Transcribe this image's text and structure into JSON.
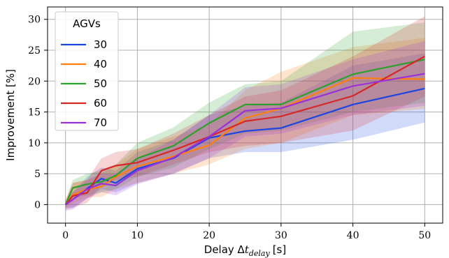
{
  "chart_data": {
    "type": "line",
    "xlabel_prefix": "Delay Δ",
    "xlabel_var": "t",
    "xlabel_sub": "delay",
    "xlabel_unit": "[s]",
    "ylabel": "Improvement [%]",
    "xlim": [
      -2.5,
      52.5
    ],
    "ylim": [
      -3,
      32
    ],
    "xticks": [
      0,
      10,
      20,
      30,
      40,
      50
    ],
    "yticks": [
      0,
      5,
      10,
      15,
      20,
      25,
      30
    ],
    "grid": true,
    "legend": {
      "title": "AGVs",
      "placement": "top-left"
    },
    "x": [
      0,
      1,
      3,
      5,
      7,
      10,
      15,
      20,
      25,
      30,
      40,
      50
    ],
    "series": [
      {
        "name": "30",
        "color": "#1f45e0",
        "values": [
          0,
          0.8,
          2.6,
          4.2,
          3.5,
          5.8,
          7.5,
          10.8,
          11.9,
          12.4,
          16.2,
          18.8
        ],
        "lower": [
          -0.5,
          -0.5,
          1.0,
          2.5,
          2.0,
          3.5,
          5.0,
          7.5,
          8.5,
          8.5,
          10.5,
          13.3
        ],
        "upper": [
          0.5,
          2.0,
          4.5,
          6.0,
          5.5,
          8.5,
          10.5,
          14.5,
          16.0,
          16.5,
          22.5,
          24.5
        ]
      },
      {
        "name": "40",
        "color": "#ff7f0e",
        "values": [
          0,
          1.6,
          2.5,
          2.9,
          4.5,
          6.2,
          7.8,
          9.6,
          14.0,
          15.6,
          20.5,
          20.3
        ],
        "lower": [
          -0.5,
          0.2,
          1.2,
          1.2,
          2.5,
          3.5,
          5.0,
          6.5,
          9.0,
          10.0,
          14.5,
          15.5
        ],
        "upper": [
          0.5,
          3.5,
          4.0,
          5.0,
          6.5,
          9.0,
          11.0,
          13.0,
          18.5,
          21.5,
          25.5,
          27.0
        ]
      },
      {
        "name": "50",
        "color": "#2ca02c",
        "values": [
          0,
          2.7,
          3.3,
          3.7,
          4.7,
          7.5,
          9.5,
          13.2,
          16.2,
          16.2,
          21.1,
          23.5
        ],
        "lower": [
          -0.5,
          1.0,
          1.5,
          2.0,
          2.5,
          4.5,
          6.0,
          9.0,
          11.5,
          12.0,
          15.0,
          16.5
        ],
        "upper": [
          0.5,
          4.0,
          5.0,
          5.5,
          6.5,
          10.0,
          12.5,
          16.5,
          19.5,
          20.0,
          28.0,
          29.5
        ]
      },
      {
        "name": "60",
        "color": "#d62728",
        "values": [
          0,
          1.4,
          1.9,
          5.5,
          6.3,
          6.8,
          8.8,
          11.0,
          13.5,
          14.3,
          17.6,
          24.0
        ],
        "lower": [
          -0.8,
          -0.5,
          0.3,
          3.0,
          4.0,
          4.5,
          6.5,
          8.5,
          9.5,
          10.0,
          12.0,
          17.5
        ],
        "upper": [
          0.8,
          3.5,
          4.0,
          7.5,
          8.5,
          9.0,
          11.5,
          14.5,
          17.5,
          18.5,
          24.0,
          30.5
        ]
      },
      {
        "name": "70",
        "color": "#9a30d8",
        "values": [
          0,
          0.8,
          2.5,
          3.4,
          3.1,
          5.5,
          7.6,
          11.0,
          15.2,
          15.6,
          19.2,
          21.2
        ],
        "lower": [
          -1.0,
          -0.8,
          1.0,
          2.0,
          1.5,
          3.3,
          5.0,
          7.5,
          11.0,
          11.5,
          14.5,
          16.0
        ],
        "upper": [
          0.5,
          2.0,
          4.0,
          5.0,
          5.0,
          7.5,
          10.5,
          14.5,
          19.0,
          19.5,
          23.5,
          26.5
        ]
      }
    ]
  }
}
